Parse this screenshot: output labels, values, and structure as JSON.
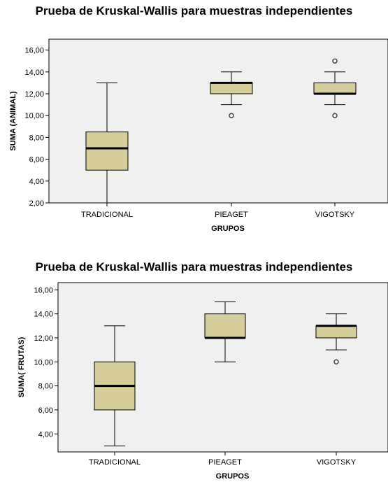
{
  "chart_data": [
    {
      "type": "boxplot",
      "title": "Prueba de Kruskal-Wallis para muestras independientes",
      "xlabel": "GRUPOS",
      "ylabel": "SUMA (ANIMAL)",
      "ylim": [
        2,
        17
      ],
      "yticks": [
        "2,00",
        "4,00",
        "6,00",
        "8,00",
        "10,00",
        "12,00",
        "14,00",
        "16,00"
      ],
      "categories": [
        "TRADICIONAL",
        "PIEAGET",
        "VIGOTSKY"
      ],
      "boxes": [
        {
          "min": 2,
          "q1": 5,
          "median": 7,
          "q3": 8.5,
          "max": 13,
          "outliers": []
        },
        {
          "min": 11,
          "q1": 12,
          "median": 13,
          "q3": 13,
          "max": 14,
          "outliers": [
            10
          ]
        },
        {
          "min": 11,
          "q1": 12,
          "median": 12,
          "q3": 13,
          "max": 14,
          "outliers": [
            15,
            10
          ]
        }
      ],
      "colors": {
        "box_fill": "#d5cd9a",
        "plot_bg": "#f0f0f0"
      },
      "grid": false
    },
    {
      "type": "boxplot",
      "title": "Prueba de Kruskal-Wallis para muestras independientes",
      "xlabel": "GRUPOS",
      "ylabel": "SUMA( FRUTAS)",
      "ylim": [
        2.5,
        16.6
      ],
      "yticks": [
        "4,00",
        "6,00",
        "8,00",
        "10,00",
        "12,00",
        "14,00",
        "16,00"
      ],
      "categories": [
        "TRADICIONAL",
        "PIEAGET",
        "VIGOTSKY"
      ],
      "boxes": [
        {
          "min": 3,
          "q1": 6,
          "median": 8,
          "q3": 10,
          "max": 13,
          "outliers": []
        },
        {
          "min": 10,
          "q1": 12,
          "median": 12,
          "q3": 14,
          "max": 15,
          "outliers": []
        },
        {
          "min": 11,
          "q1": 12,
          "median": 13,
          "q3": 13,
          "max": 14,
          "outliers": [
            10
          ]
        }
      ],
      "colors": {
        "box_fill": "#d5cd9a",
        "plot_bg": "#f0f0f0"
      },
      "grid": false
    }
  ]
}
